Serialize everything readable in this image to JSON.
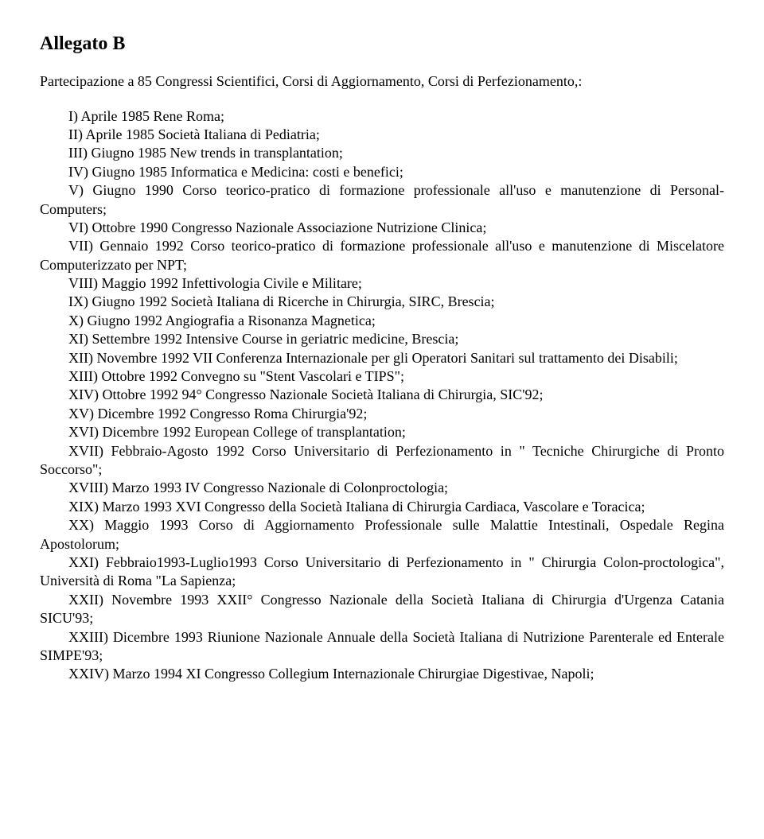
{
  "title": "Allegato B",
  "intro": "Partecipazione a 85 Congressi Scientifici, Corsi di Aggiornamento, Corsi di Perfezionamento,:",
  "items": [
    {
      "text": "I) Aprile 1985 Rene Roma;"
    },
    {
      "text": "II) Aprile 1985 Società Italiana di Pediatria;"
    },
    {
      "text": "III) Giugno 1985 New trends in transplantation;"
    },
    {
      "text": "IV) Giugno 1985 Informatica e Medicina: costi e benefici;"
    },
    {
      "text": "V) Giugno 1990 Corso teorico-pratico di formazione professionale all'uso e manutenzione di Personal-Computers;",
      "wrap": true
    },
    {
      "text": "VI) Ottobre 1990 Congresso Nazionale Associazione Nutrizione Clinica;"
    },
    {
      "text": "VII) Gennaio 1992 Corso teorico-pratico di formazione professionale all'uso e manutenzione di Miscelatore Computerizzato per NPT;",
      "wrap": true
    },
    {
      "text": "VIII) Maggio 1992 Infettivologia Civile e Militare;"
    },
    {
      "text": "IX) Giugno 1992 Società Italiana di Ricerche in Chirurgia, SIRC, Brescia;"
    },
    {
      "text": "X) Giugno 1992 Angiografia a Risonanza Magnetica;"
    },
    {
      "text": "XI) Settembre 1992 Intensive Course in geriatric medicine, Brescia;"
    },
    {
      "text": "XII) Novembre 1992 VII Conferenza Internazionale per gli Operatori Sanitari sul trattamento dei Disabili;",
      "wrap": true
    },
    {
      "text": "XIII) Ottobre 1992 Convegno su \"Stent Vascolari e TIPS\";"
    },
    {
      "text": "XIV) Ottobre 1992 94° Congresso Nazionale Società Italiana di Chirurgia, SIC'92;"
    },
    {
      "text": "XV) Dicembre 1992 Congresso Roma Chirurgia'92;"
    },
    {
      "text": "XVI) Dicembre 1992 European College of transplantation;"
    },
    {
      "text": "XVII) Febbraio-Agosto 1992 Corso Universitario di Perfezionamento in \" Tecniche Chirurgiche di Pronto Soccorso\";",
      "wrap": true
    },
    {
      "text": "XVIII) Marzo 1993 IV Congresso Nazionale di Colonproctologia;"
    },
    {
      "text": "XIX) Marzo 1993 XVI Congresso della Società Italiana di Chirurgia Cardiaca, Vascolare e Toracica;",
      "wrap": true
    },
    {
      "text": "XX) Maggio 1993 Corso di Aggiornamento Professionale sulle Malattie Intestinali, Ospedale Regina Apostolorum;",
      "wrap": true
    },
    {
      "text": "XXI) Febbraio1993-Luglio1993 Corso Universitario di Perfezionamento in \" Chirurgia Colon-proctologica\", Università di Roma \"La Sapienza;",
      "wrap": true
    },
    {
      "text": "XXII) Novembre 1993 XXII° Congresso Nazionale della Società Italiana di Chirurgia d'Urgenza Catania SICU'93;",
      "wrap": true
    },
    {
      "text": "XXIII) Dicembre 1993 Riunione Nazionale Annuale della Società Italiana di Nutrizione Parenterale ed Enterale SIMPE'93;",
      "wrap": true
    },
    {
      "text": "XXIV) Marzo 1994 XI Congresso Collegium Internazionale Chirurgiae Digestivae, Napoli;"
    }
  ]
}
